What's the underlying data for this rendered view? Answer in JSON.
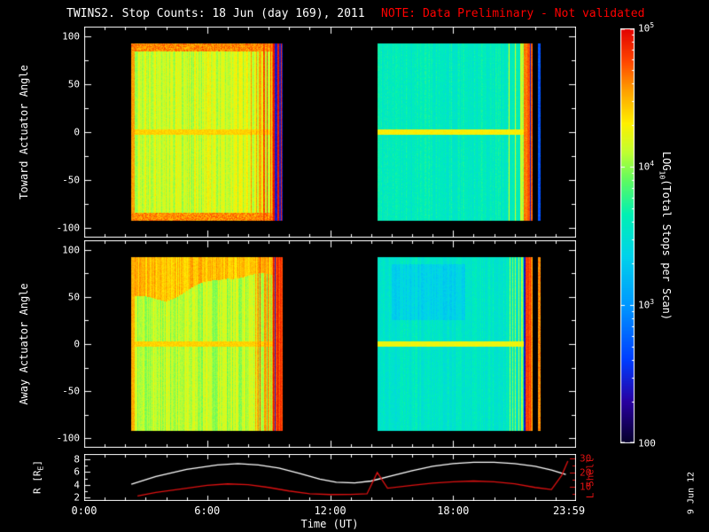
{
  "title": "TWINS2. Stop Counts: 18 Jun (day 169), 2011",
  "note": "NOTE: Data Preliminary - Not validated",
  "timestamp": "9 Jun 12",
  "colors": {
    "background": "#000000",
    "axis": "#ffffff",
    "note_red": "#ff0000",
    "lshell_red": "#dd1111",
    "r_line_white": "#ffffff"
  },
  "colormap": {
    "stops": [
      {
        "t": 0.0,
        "c": [
          5,
          0,
          40
        ]
      },
      {
        "t": 0.1,
        "c": [
          40,
          0,
          160
        ]
      },
      {
        "t": 0.2,
        "c": [
          0,
          60,
          255
        ]
      },
      {
        "t": 0.33,
        "c": [
          0,
          150,
          255
        ]
      },
      {
        "t": 0.45,
        "c": [
          0,
          210,
          235
        ]
      },
      {
        "t": 0.55,
        "c": [
          0,
          240,
          180
        ]
      },
      {
        "t": 0.63,
        "c": [
          90,
          250,
          100
        ]
      },
      {
        "t": 0.7,
        "c": [
          190,
          255,
          50
        ]
      },
      {
        "t": 0.77,
        "c": [
          255,
          240,
          0
        ]
      },
      {
        "t": 0.85,
        "c": [
          255,
          160,
          0
        ]
      },
      {
        "t": 0.92,
        "c": [
          255,
          70,
          0
        ]
      },
      {
        "t": 1.0,
        "c": [
          225,
          0,
          0
        ]
      }
    ]
  },
  "axes": {
    "x": {
      "title": "Time (UT)",
      "range_hours": [
        0,
        24
      ],
      "ticks": [
        {
          "h": 0,
          "label": "0:00"
        },
        {
          "h": 6,
          "label": "6:00"
        },
        {
          "h": 12,
          "label": "12:00"
        },
        {
          "h": 18,
          "label": "18:00"
        },
        {
          "h": 24,
          "label": "23:59"
        }
      ]
    },
    "angle_ticks": [
      100,
      50,
      0,
      -50,
      -100
    ],
    "r_axis": {
      "title_pre": "R [R",
      "title_sub": "E",
      "title_post": "]",
      "ticks": [
        8,
        6,
        4,
        2
      ],
      "lim": [
        1.5,
        8.8
      ]
    },
    "l_axis": {
      "title": "L Shell",
      "ticks": [
        30,
        20,
        10
      ],
      "lim": [
        0,
        33
      ]
    },
    "colorbar": {
      "title_pre": "LOG",
      "title_sub": "10",
      "title_post": "(Total Stops per Scan)",
      "lim_log": [
        2,
        5
      ],
      "ticks": [
        {
          "log": 5,
          "base": "10",
          "sup": "5"
        },
        {
          "log": 4,
          "base": "10",
          "sup": "4"
        },
        {
          "log": 3,
          "base": "10",
          "sup": "3"
        },
        {
          "log": 2,
          "base": "100",
          "sup": ""
        }
      ]
    }
  },
  "chart_data": [
    {
      "type": "heatmap",
      "name": "toward-actuator-spectrogram",
      "ylabel": "Toward Actuator Angle",
      "ylim": [
        -110,
        110
      ],
      "yticks": [
        -100,
        -50,
        0,
        50,
        100
      ],
      "data_angle_limit": 92,
      "value_unit": "log10 total stops per scan",
      "segments": [
        {
          "t_start": 2.3,
          "t_end": 9.7,
          "base_log": 4.15,
          "stripe_amp": 0.17,
          "seed": 7,
          "left_edge": {
            "width_h": 0.15,
            "log": 4.55
          },
          "right_edge": {
            "width_h": 0.5,
            "log": 4.85,
            "dark_frac": 0.28,
            "approach_h": 1.1
          },
          "edge_rows": {
            "angle": 84,
            "log": 4.6
          },
          "zero_line_log": 4.4
        },
        {
          "t_start": 14.3,
          "t_end": 21.9,
          "base_log": 3.6,
          "stripe_amp": 0.1,
          "seed": 13,
          "right_edge": {
            "width_h": 0.45,
            "log": 4.75,
            "dark_frac": 0.2,
            "approach_h": 0.9
          },
          "zero_line_log": 4.3,
          "post_line": {
            "t": 22.2,
            "log": 2.7
          }
        }
      ]
    },
    {
      "type": "heatmap",
      "name": "away-actuator-spectrogram",
      "ylabel": "Away Actuator Angle",
      "ylim": [
        -110,
        110
      ],
      "yticks": [
        -100,
        -50,
        0,
        50,
        100
      ],
      "data_angle_limit": 92,
      "value_unit": "log10 total stops per scan",
      "segments": [
        {
          "t_start": 2.3,
          "t_end": 9.7,
          "base_log": 4.08,
          "stripe_amp": 0.15,
          "seed": 21,
          "left_edge": {
            "width_h": 0.15,
            "log": 4.5
          },
          "top_band": {
            "a_min_start": 48,
            "a_min_end": 72,
            "t_ramp": [
              4,
              7
            ],
            "a_max": 92,
            "log": 4.45
          },
          "right_edge": {
            "width_h": 0.5,
            "log": 4.85,
            "dark_frac": 0.22,
            "approach_h": 1.0
          },
          "zero_line_log": 4.4
        },
        {
          "t_start": 14.3,
          "t_end": 21.9,
          "base_log": 3.55,
          "stripe_amp": 0.09,
          "seed": 29,
          "right_edge": {
            "width_h": 0.45,
            "log": 4.7,
            "dark_frac": 0.15,
            "approach_h": 0.8
          },
          "zero_line_log": 4.25,
          "patches": [
            {
              "t0": 15.0,
              "t1": 18.6,
              "a0": 25,
              "a1": 85,
              "dlog": -0.18
            }
          ],
          "post_line": {
            "t": 22.2,
            "log": 4.6
          }
        }
      ]
    },
    {
      "type": "line",
      "name": "ephemeris",
      "x_unit": "hours UT",
      "series": [
        {
          "name": "R [RE]",
          "axis": "left",
          "color": "#ffffff",
          "t": [
            2.3,
            3.5,
            5,
            6.5,
            7.5,
            8.5,
            9.5,
            10.5,
            11.5,
            12.3,
            13.2,
            14,
            15,
            16,
            17,
            18,
            19,
            20,
            21,
            22,
            22.8,
            23.5
          ],
          "v": [
            4.1,
            5.3,
            6.4,
            7.1,
            7.3,
            7.1,
            6.6,
            5.8,
            4.9,
            4.4,
            4.3,
            4.6,
            5.4,
            6.2,
            6.9,
            7.3,
            7.5,
            7.5,
            7.3,
            6.9,
            6.3,
            5.6
          ]
        },
        {
          "name": "L Shell",
          "axis": "right",
          "color": "#dd1111",
          "t": [
            2.6,
            3.5,
            5,
            6,
            7,
            8,
            9,
            10,
            11,
            12,
            13,
            13.8,
            14.3,
            14.8,
            16,
            17,
            18,
            19,
            20,
            21,
            22,
            22.8,
            23.3,
            23.6
          ],
          "v": [
            3.5,
            6,
            9,
            11,
            12,
            11.5,
            9.5,
            7,
            5,
            4.5,
            4.6,
            5,
            20,
            9,
            11,
            12.5,
            13.5,
            14,
            13.5,
            12,
            9.5,
            8,
            18,
            28
          ]
        }
      ]
    }
  ]
}
